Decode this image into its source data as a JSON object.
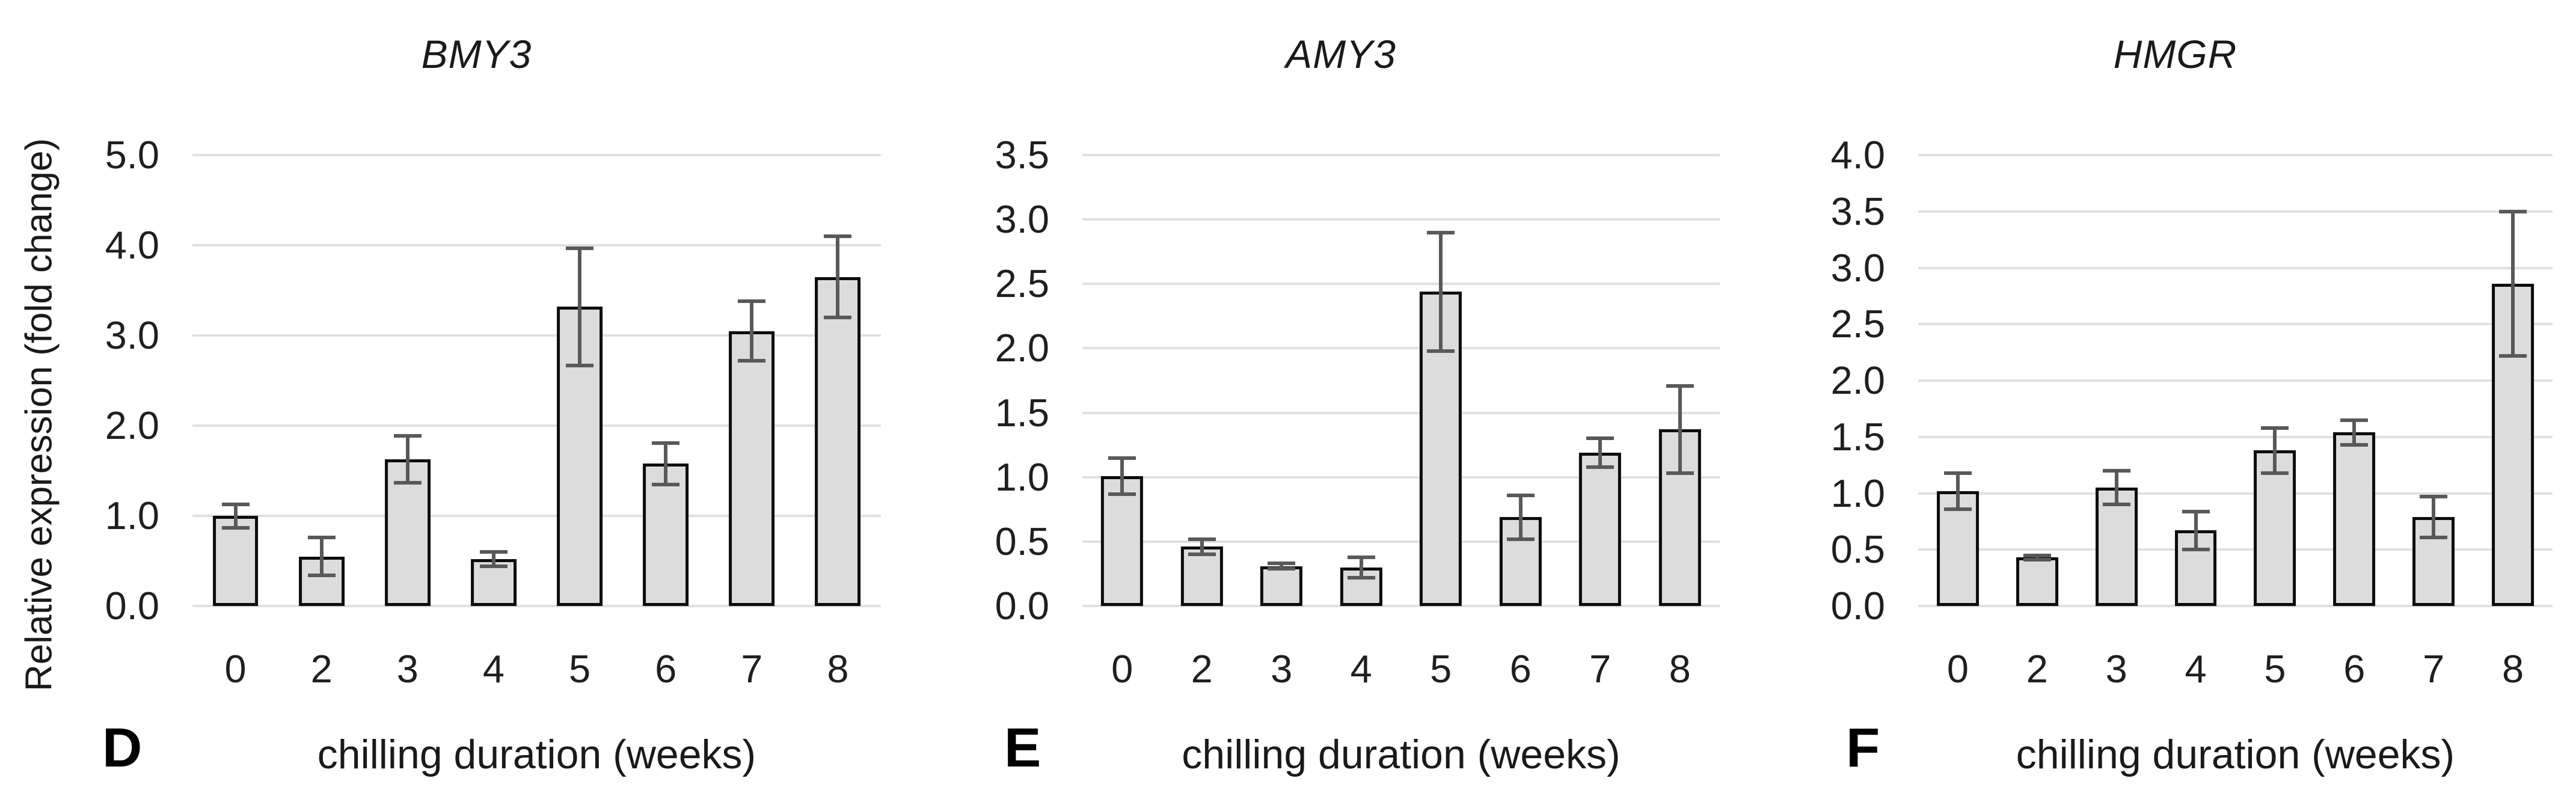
{
  "figure": {
    "y_axis_label": "Relative expression (fold change)",
    "x_axis_label": "chilling duration (weeks)",
    "colors": {
      "bar_fill": "#dcdcdc",
      "bar_border": "#0d0d0d",
      "error_bar": "#595959",
      "gridline": "#e0e0e0",
      "text": "#1a1a1a"
    }
  },
  "chart_data": [
    {
      "type": "bar",
      "panel_label": "D",
      "title": "BMY3",
      "xlabel": "chilling duration (weeks)",
      "ylabel": "Relative expression (fold change)",
      "categories": [
        "0",
        "2",
        "3",
        "4",
        "5",
        "6",
        "7",
        "8"
      ],
      "values": [
        1.0,
        0.55,
        1.63,
        0.52,
        3.32,
        1.58,
        3.05,
        3.65
      ],
      "errors": [
        0.13,
        0.21,
        0.26,
        0.08,
        0.65,
        0.23,
        0.33,
        0.45
      ],
      "ylim": [
        0,
        5.0
      ],
      "ytick_step": 1.0,
      "ytick_labels": [
        "0.0",
        "1.0",
        "2.0",
        "3.0",
        "4.0",
        "5.0"
      ],
      "grid": true,
      "legend": false
    },
    {
      "type": "bar",
      "panel_label": "E",
      "title": "AMY3",
      "xlabel": "chilling duration (weeks)",
      "ylabel": "",
      "categories": [
        "0",
        "2",
        "3",
        "4",
        "5",
        "6",
        "7",
        "8"
      ],
      "values": [
        1.01,
        0.46,
        0.31,
        0.3,
        2.44,
        0.69,
        1.19,
        1.37
      ],
      "errors": [
        0.14,
        0.06,
        0.02,
        0.08,
        0.46,
        0.17,
        0.11,
        0.34
      ],
      "ylim": [
        0,
        3.5
      ],
      "ytick_step": 0.5,
      "ytick_labels": [
        "0.0",
        "0.5",
        "1.0",
        "1.5",
        "2.0",
        "2.5",
        "3.0",
        "3.5"
      ],
      "grid": true,
      "legend": false
    },
    {
      "type": "bar",
      "panel_label": "F",
      "title": "HMGR",
      "xlabel": "chilling duration (weeks)",
      "ylabel": "",
      "categories": [
        "0",
        "2",
        "3",
        "4",
        "5",
        "6",
        "7",
        "8"
      ],
      "values": [
        1.02,
        0.43,
        1.05,
        0.67,
        1.38,
        1.54,
        0.79,
        2.86
      ],
      "errors": [
        0.16,
        0.02,
        0.15,
        0.17,
        0.2,
        0.11,
        0.18,
        0.64
      ],
      "ylim": [
        0,
        4.0
      ],
      "ytick_step": 0.5,
      "ytick_labels": [
        "0.0",
        "0.5",
        "1.0",
        "1.5",
        "2.0",
        "2.5",
        "3.0",
        "3.5",
        "4.0"
      ],
      "grid": true,
      "legend": false
    }
  ]
}
